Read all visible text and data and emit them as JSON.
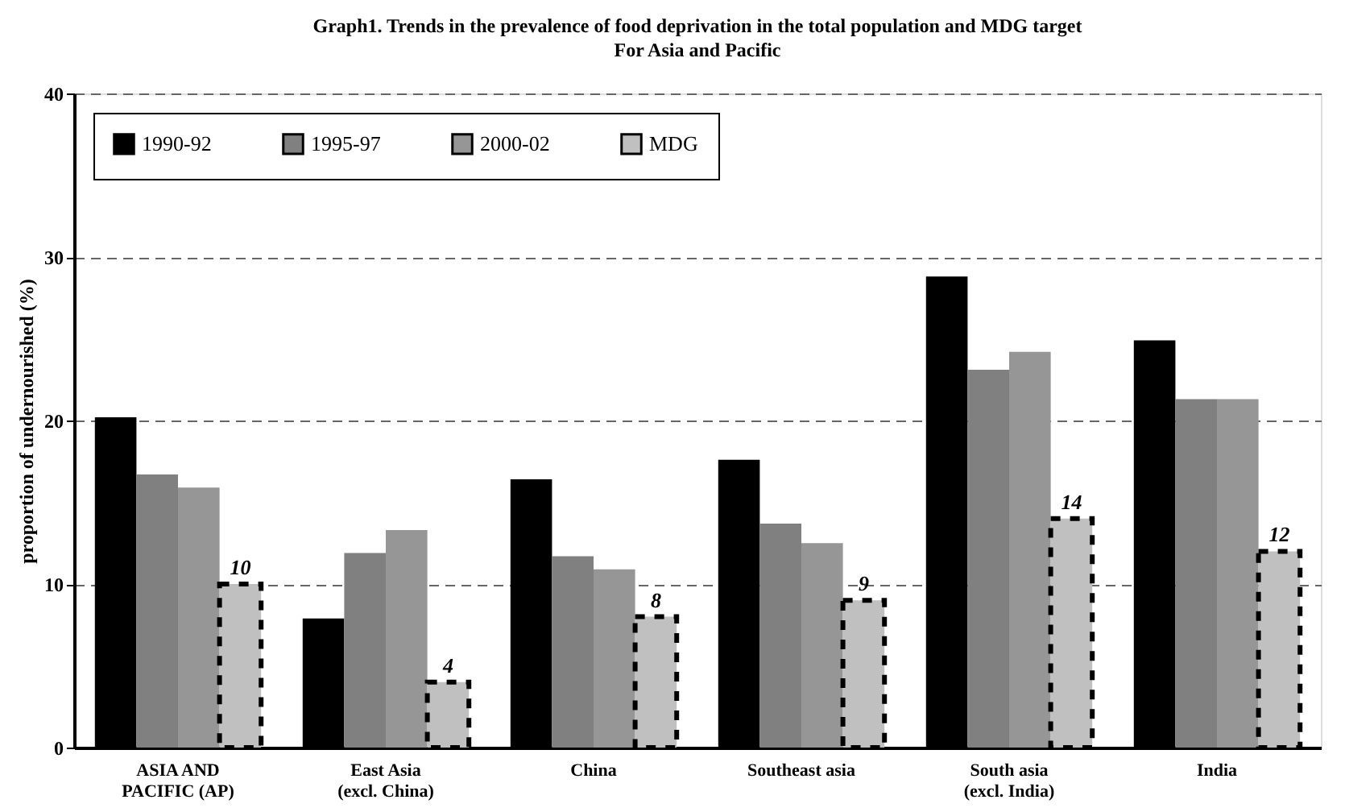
{
  "chart_data": {
    "type": "bar",
    "title": "Graph1. Trends in the prevalence of food deprivation in the total population and MDG target",
    "subtitle": "For Asia and Pacific",
    "ylabel": "proportion of undernourished (%)",
    "categories": [
      "ASIA AND\nPACIFIC (AP)",
      "East Asia\n(excl. China)",
      "China",
      "Southeast asia",
      "South asia\n(excl. India)",
      "India"
    ],
    "series": [
      {
        "name": "1990-92",
        "color": "#000000",
        "values": [
          20.2,
          7.9,
          16.4,
          17.6,
          28.8,
          24.9
        ]
      },
      {
        "name": "1995-97",
        "color": "#808080",
        "values": [
          16.7,
          11.9,
          11.7,
          13.7,
          23.1,
          21.3
        ]
      },
      {
        "name": "2000-02",
        "color": "#969696",
        "values": [
          15.9,
          13.3,
          10.9,
          12.5,
          24.2,
          21.3
        ]
      },
      {
        "name": "MDG",
        "color": "#c0c0c0",
        "line_style": "dashed",
        "values": [
          10,
          4,
          8,
          9,
          14,
          12
        ],
        "value_labels": [
          "10",
          "4",
          "8",
          "9",
          "14",
          "12"
        ]
      }
    ],
    "ylim": [
      0,
      40
    ],
    "yticks": [
      0,
      10,
      20,
      30,
      40
    ],
    "grid": "y",
    "legend": "top left"
  }
}
